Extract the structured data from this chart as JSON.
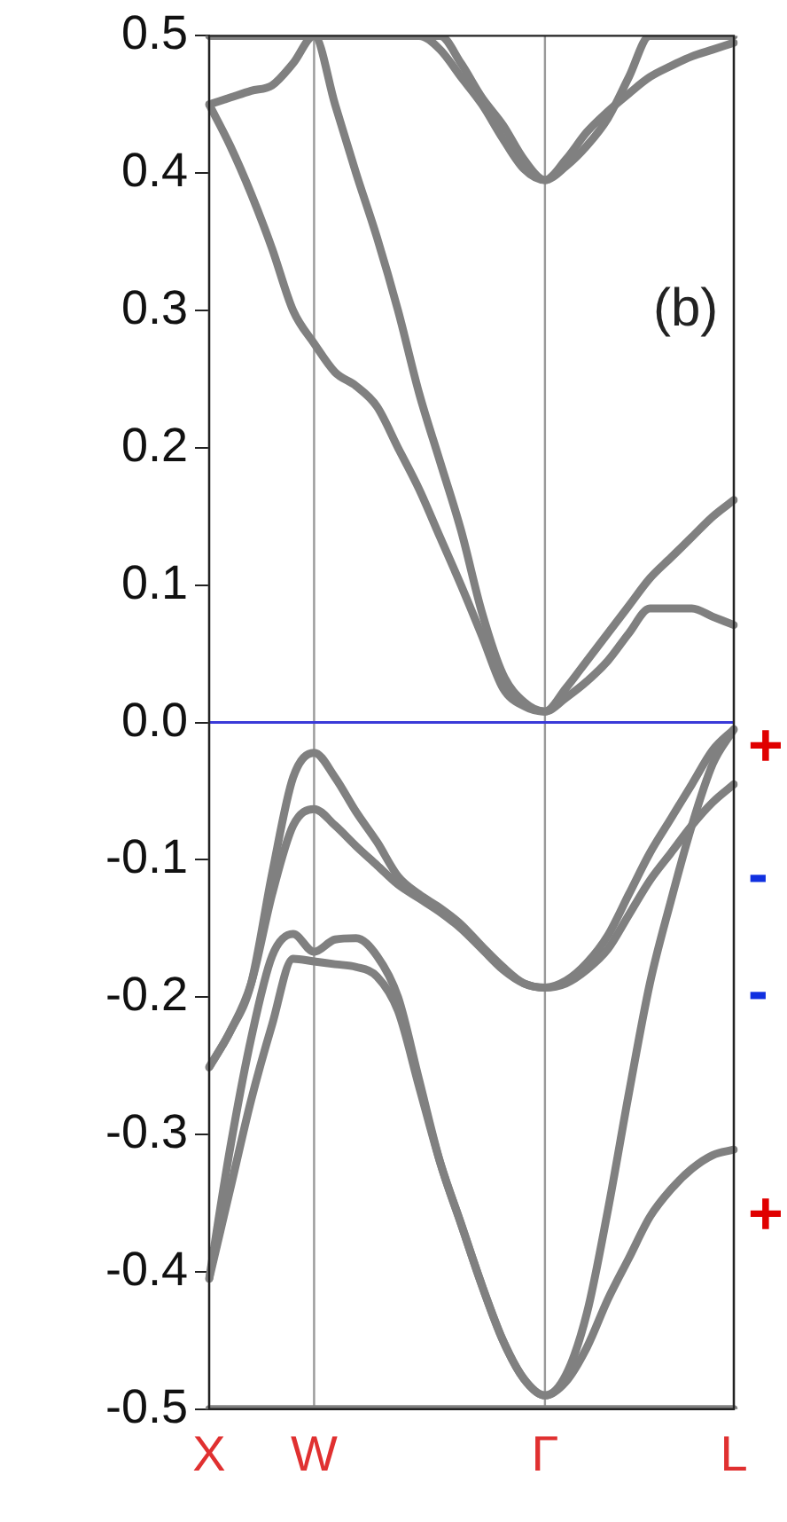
{
  "chart_data": {
    "type": "line",
    "categories": [
      "X",
      null,
      null,
      null,
      null,
      "W",
      null,
      null,
      null,
      null,
      null,
      null,
      null,
      null,
      null,
      null,
      "Γ",
      null,
      null,
      null,
      null,
      null,
      null,
      null,
      null,
      "L"
    ],
    "ylim": [
      -0.5,
      0.5
    ],
    "yticks": [
      -0.5,
      -0.4,
      -0.3,
      -0.2,
      -0.1,
      {
        "value": 0,
        "label": "0.0"
      },
      0.1,
      0.2,
      0.3,
      0.4,
      0.5
    ],
    "grid": "x",
    "line_style": "solid",
    "marker": "none",
    "series": [
      {
        "color": "#808080",
        "values": [
          0.5,
          0.5,
          0.5,
          0.5,
          0.5,
          0.5,
          0.5,
          0.5,
          0.5,
          0.5,
          0.5,
          0.49,
          0.47,
          0.45,
          0.425,
          0.403,
          0.395,
          0.405,
          0.42,
          0.44,
          0.47,
          0.5,
          0.5,
          0.5,
          0.5,
          0.5
        ]
      },
      {
        "color": "#808080",
        "values": [
          0.5,
          0.5,
          0.5,
          0.5,
          0.5,
          0.5,
          0.5,
          0.5,
          0.5,
          0.5,
          0.5,
          0.5,
          0.48,
          0.455,
          0.435,
          0.41,
          0.395,
          0.41,
          0.43,
          0.445,
          0.458,
          0.47,
          0.478,
          0.485,
          0.49,
          0.495
        ]
      },
      {
        "color": "#808080",
        "values": [
          0.45,
          0.455,
          0.46,
          0.464,
          0.48,
          0.5,
          0.45,
          0.4,
          0.353,
          0.3,
          0.24,
          0.19,
          0.14,
          0.08,
          0.035,
          0.015,
          0.008,
          0.025,
          0.045,
          0.065,
          0.085,
          0.105,
          0.12,
          0.135,
          0.15,
          0.162
        ]
      },
      {
        "color": "#808080",
        "values": [
          0.45,
          0.42,
          0.385,
          0.345,
          0.3,
          0.276,
          0.255,
          0.245,
          0.23,
          0.2,
          0.17,
          0.135,
          0.1,
          0.063,
          0.025,
          0.012,
          0.008,
          0.018,
          0.03,
          0.045,
          0.065,
          0.083,
          0.083,
          0.083,
          0.077,
          0.071
        ]
      },
      {
        "color": "#808080",
        "values": [
          -0.251,
          -0.225,
          -0.19,
          -0.11,
          -0.04,
          -0.022,
          -0.04,
          -0.065,
          -0.087,
          -0.112,
          -0.125,
          -0.135,
          -0.147,
          -0.163,
          -0.178,
          -0.19,
          -0.193,
          -0.188,
          -0.175,
          -0.155,
          -0.125,
          -0.095,
          -0.07,
          -0.045,
          -0.02,
          -0.005
        ]
      },
      {
        "color": "#808080",
        "values": [
          -0.251,
          -0.225,
          -0.19,
          -0.125,
          -0.075,
          -0.063,
          -0.075,
          -0.09,
          -0.104,
          -0.118,
          -0.128,
          -0.138,
          -0.15,
          -0.165,
          -0.18,
          -0.19,
          -0.193,
          -0.19,
          -0.18,
          -0.165,
          -0.14,
          -0.115,
          -0.095,
          -0.075,
          -0.058,
          -0.045
        ]
      },
      {
        "color": "#808080",
        "values": [
          -0.405,
          -0.31,
          -0.23,
          -0.17,
          -0.154,
          -0.167,
          -0.158,
          -0.157,
          -0.17,
          -0.2,
          -0.26,
          -0.32,
          -0.365,
          -0.41,
          -0.45,
          -0.478,
          -0.49,
          -0.475,
          -0.43,
          -0.355,
          -0.27,
          -0.19,
          -0.13,
          -0.075,
          -0.03,
          -0.005
        ]
      },
      {
        "color": "#808080",
        "values": [
          -0.405,
          -0.34,
          -0.275,
          -0.22,
          -0.172,
          -0.174,
          -0.176,
          -0.178,
          -0.185,
          -0.21,
          -0.265,
          -0.32,
          -0.365,
          -0.41,
          -0.45,
          -0.478,
          -0.49,
          -0.48,
          -0.455,
          -0.42,
          -0.39,
          -0.36,
          -0.34,
          -0.325,
          -0.315,
          -0.311
        ]
      },
      {
        "color": "#808080",
        "values": [
          -0.5,
          -0.5,
          -0.5,
          -0.5,
          -0.5,
          -0.5,
          -0.5,
          -0.5,
          -0.5,
          -0.5,
          -0.5,
          -0.5,
          -0.5,
          -0.5,
          -0.5,
          -0.5,
          -0.5,
          -0.5,
          -0.5,
          -0.5,
          -0.5,
          -0.5,
          -0.5,
          -0.5,
          -0.5,
          -0.5
        ]
      }
    ],
    "ref_lines": [
      {
        "axis": "y",
        "value": 0,
        "color": "#3a3ad8"
      }
    ],
    "annotations": [
      "(b)",
      "+",
      "-",
      "-",
      "+"
    ]
  }
}
